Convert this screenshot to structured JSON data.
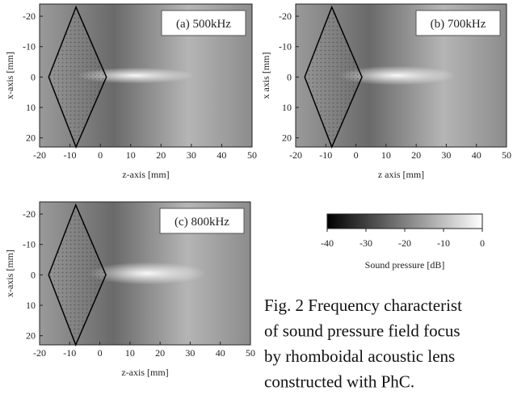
{
  "chart_data": [
    {
      "type": "heatmap",
      "title": "(a) 500kHz",
      "xlabel": "z-axis [mm]",
      "ylabel": "x-axis [mm]",
      "xlim": [
        -20,
        50
      ],
      "xticks": [
        -20,
        -10,
        0,
        10,
        20,
        30,
        40,
        50
      ],
      "ylim": [
        -24,
        23
      ],
      "yinvert": true,
      "yticks": [
        -20,
        -10,
        0,
        10,
        20
      ],
      "lens": {
        "z": [
          -17,
          -8,
          2,
          -8
        ],
        "x": [
          0,
          -23,
          0,
          23
        ]
      }
    },
    {
      "type": "heatmap",
      "title": "(b) 700kHz",
      "xlabel": "z axis [mm]",
      "ylabel": "x axis [mm]",
      "xlim": [
        -20,
        50
      ],
      "xticks": [
        -20,
        -10,
        0,
        10,
        20,
        30,
        40,
        50
      ],
      "ylim": [
        -24,
        23
      ],
      "yinvert": true,
      "yticks": [
        -20,
        -10,
        0,
        10,
        20
      ],
      "lens": {
        "z": [
          -17,
          -8,
          2,
          -8
        ],
        "x": [
          0,
          -23,
          0,
          23
        ]
      }
    },
    {
      "type": "heatmap",
      "title": "(c) 800kHz",
      "xlabel": "z-axis [mm]",
      "ylabel": "x-axis [mm]",
      "xlim": [
        -20,
        50
      ],
      "xticks": [
        -20,
        -10,
        0,
        10,
        20,
        30,
        40,
        50
      ],
      "ylim": [
        -24,
        23
      ],
      "yinvert": true,
      "yticks": [
        -20,
        -10,
        0,
        10,
        20
      ],
      "lens": {
        "z": [
          -17,
          -8,
          2,
          -8
        ],
        "x": [
          0,
          -23,
          0,
          23
        ]
      }
    },
    {
      "type": "colorbar",
      "xlabel": "Sound pressure [dB]",
      "xlim": [
        -40,
        0
      ],
      "xticks": [
        -40,
        -30,
        -20,
        -10,
        0
      ]
    }
  ],
  "caption": [
    "Fig. 2 Frequency characterist",
    "of sound pressure field focus",
    "by rhomboidal acoustic lens",
    "constructed with PhC."
  ]
}
